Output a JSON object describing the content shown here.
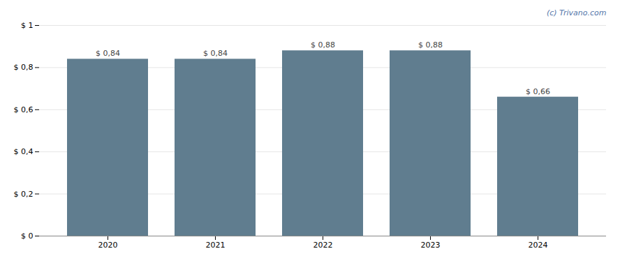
{
  "chart_data": {
    "type": "bar",
    "categories": [
      "2020",
      "2021",
      "2022",
      "2023",
      "2024"
    ],
    "values": [
      0.84,
      0.84,
      0.88,
      0.88,
      0.66
    ],
    "value_labels": [
      "$ 0,84",
      "$ 0,84",
      "$ 0,88",
      "$ 0,88",
      "$ 0,66"
    ],
    "data_labels": true,
    "color": "#607d8f",
    "ylim": [
      0,
      1.0
    ],
    "yticks": [
      {
        "value": 0,
        "label": "$ 0"
      },
      {
        "value": 0.2,
        "label": "$ 0,2"
      },
      {
        "value": 0.4,
        "label": "$ 0,4"
      },
      {
        "value": 0.6,
        "label": "$ 0,6"
      },
      {
        "value": 0.8,
        "label": "$ 0,8"
      },
      {
        "value": 1.0,
        "label": "$ 1"
      }
    ],
    "grid": true,
    "annotations": [
      {
        "text": "(c) Trivano.com",
        "color": "#5577aa"
      }
    ]
  }
}
